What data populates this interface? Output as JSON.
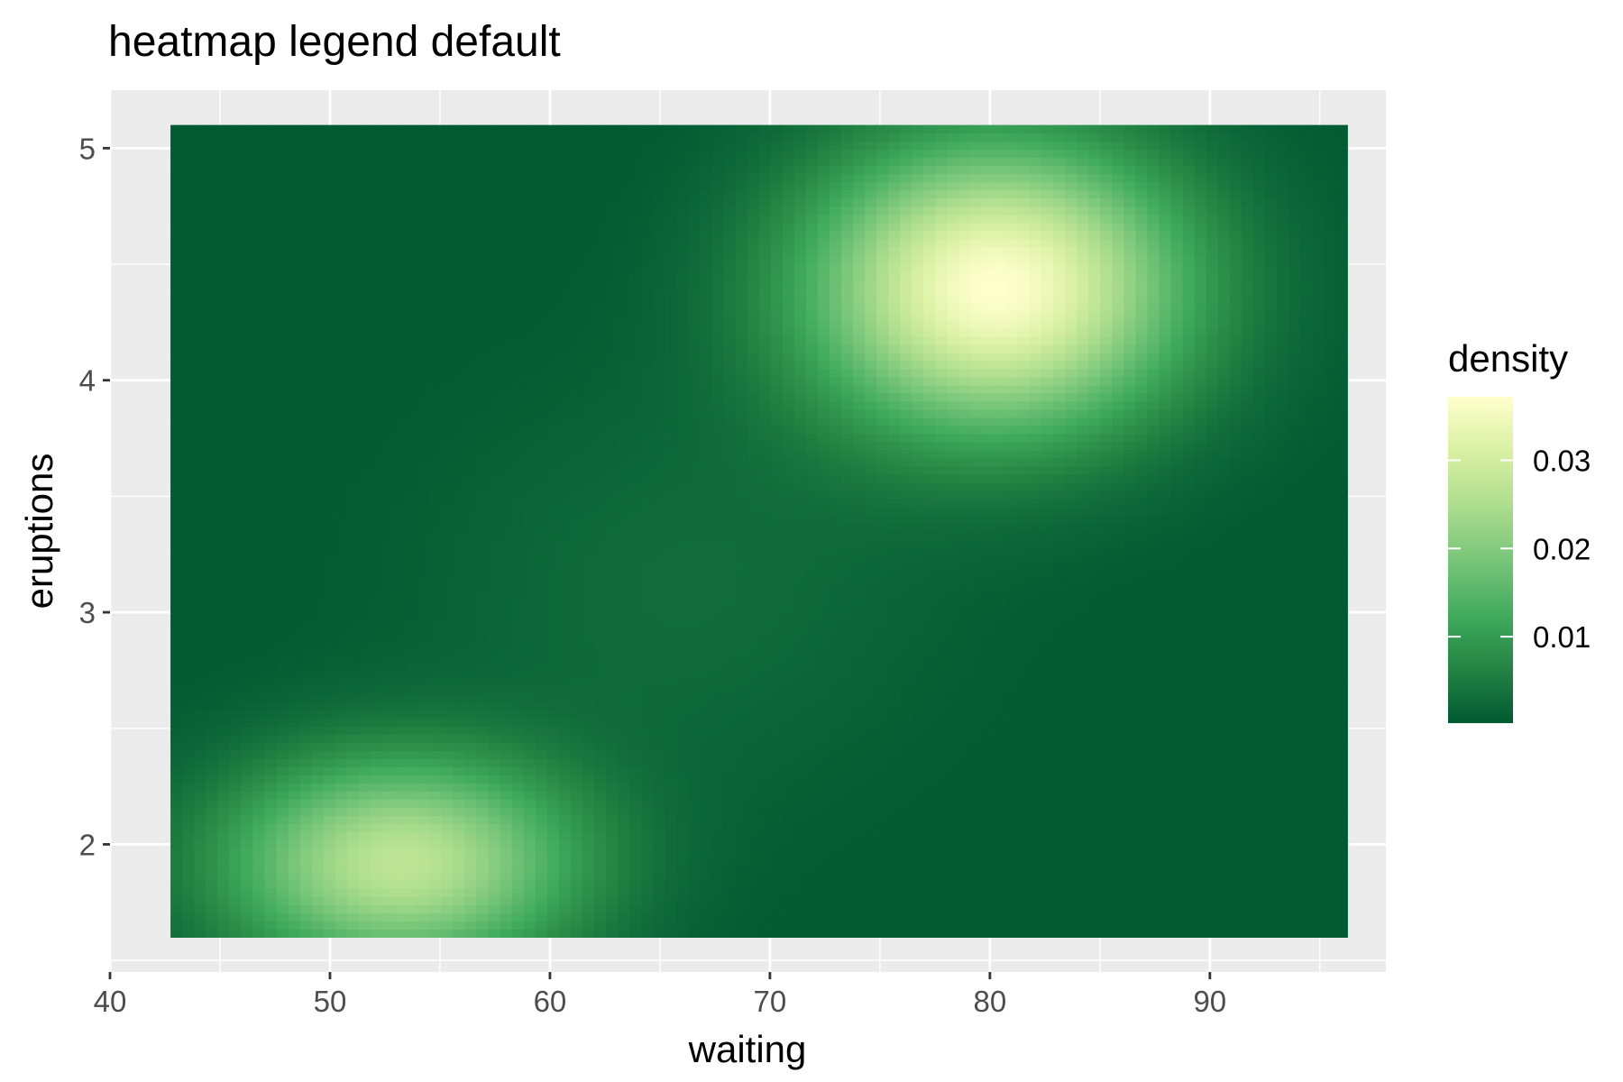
{
  "chart_data": {
    "type": "heatmap",
    "title": "heatmap legend default",
    "xlabel": "waiting",
    "ylabel": "eruptions",
    "xlim": [
      40,
      98
    ],
    "ylim": [
      1.45,
      5.25
    ],
    "x_ticks": [
      40,
      50,
      60,
      70,
      80,
      90
    ],
    "y_ticks": [
      2,
      3,
      4,
      5
    ],
    "grid": true,
    "x_range": [
      42.75,
      96.25
    ],
    "y_range": [
      1.6,
      5.1
    ],
    "value_range": [
      0.0002,
      0.0372
    ],
    "legend": {
      "title": "density",
      "position": "right",
      "breaks": [
        0.01,
        0.02,
        0.03
      ],
      "labels": [
        "0.01",
        "0.02",
        "0.03"
      ],
      "colors": [
        "#005a32",
        "#238443",
        "#41ab5d",
        "#78c679",
        "#addd8e",
        "#d9f0a3",
        "#ffffcc"
      ]
    },
    "density_peaks": [
      {
        "x": 80.3,
        "y": 4.4,
        "value": 0.037
      },
      {
        "x": 53.2,
        "y": 1.92,
        "value": 0.027
      }
    ],
    "colors": {
      "panel_background": "#ebebeb",
      "grid_major": "#ffffff",
      "text": "#000000",
      "tick_text": "#4d4d4d",
      "tick_marks": "#333333"
    }
  }
}
